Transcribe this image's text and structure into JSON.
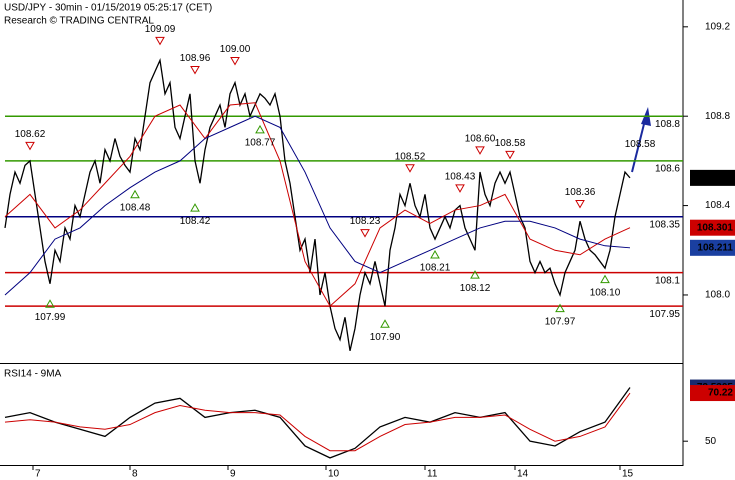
{
  "chart_data": [
    {
      "type": "line",
      "title": "USD/JPY - 30min - 01/15/2019 05:25:17 (CET)",
      "subtitle": "Research © TRADING CENTRAL",
      "xlim": [
        -1,
        135.6
      ],
      "xticks": [
        {
          "value": 5.6,
          "label": "7"
        },
        {
          "value": 25,
          "label": "8"
        },
        {
          "value": 44.6,
          "label": "9"
        },
        {
          "value": 64.2,
          "label": "10"
        },
        {
          "value": 84,
          "label": "11"
        },
        {
          "value": 102,
          "label": "14"
        },
        {
          "value": 123,
          "label": "15"
        }
      ],
      "ylim": [
        107.7,
        109.32
      ],
      "yticks": [
        109.2,
        108.8,
        108.4,
        {
          "value": 108.0,
          "label": "108.0"
        }
      ],
      "series": [
        {
          "color": "#000000",
          "x": [
            0,
            1,
            2,
            3,
            4,
            5,
            6,
            7,
            8,
            9,
            10,
            11,
            12,
            13,
            14,
            15,
            16,
            17,
            18,
            19,
            20,
            21,
            22,
            23,
            24,
            25,
            26,
            27,
            28,
            29,
            30,
            31,
            32,
            33,
            34,
            35,
            36,
            37,
            38,
            39,
            40,
            41,
            42,
            43,
            44,
            45,
            46,
            47,
            48,
            49,
            50,
            51,
            52,
            53,
            54,
            55,
            56,
            57,
            58,
            59,
            60,
            61,
            62,
            63,
            64,
            65,
            66,
            67,
            68,
            69,
            70,
            71,
            72,
            73,
            74,
            75,
            76,
            77,
            78,
            79,
            80,
            81,
            82,
            83,
            84,
            85,
            86,
            87,
            88,
            89,
            90,
            91,
            92,
            93,
            94,
            95,
            96,
            97,
            98,
            99,
            100,
            101,
            102,
            103,
            104,
            105,
            106,
            107,
            108,
            109,
            110,
            111,
            112,
            113,
            114,
            115,
            116,
            117,
            118,
            119,
            120,
            121,
            122,
            123,
            124,
            125
          ],
          "values": [
            108.3,
            108.45,
            108.55,
            108.5,
            108.58,
            108.6,
            108.45,
            108.3,
            108.15,
            108.05,
            108.2,
            108.15,
            108.3,
            108.25,
            108.4,
            108.35,
            108.45,
            108.55,
            108.6,
            108.5,
            108.65,
            108.6,
            108.7,
            108.62,
            108.58,
            108.55,
            108.7,
            108.65,
            108.8,
            108.95,
            109.0,
            109.05,
            108.9,
            108.95,
            108.75,
            108.7,
            108.8,
            108.9,
            108.6,
            108.5,
            108.65,
            108.75,
            108.8,
            108.85,
            108.75,
            108.9,
            108.95,
            108.85,
            108.9,
            108.8,
            108.85,
            108.9,
            108.88,
            108.85,
            108.9,
            108.8,
            108.6,
            108.5,
            108.35,
            108.2,
            108.25,
            108.1,
            108.25,
            108.0,
            108.1,
            107.95,
            107.85,
            107.8,
            107.9,
            107.75,
            107.85,
            108.0,
            108.1,
            108.05,
            108.15,
            108.05,
            107.95,
            108.2,
            108.3,
            108.45,
            108.4,
            108.5,
            108.4,
            108.35,
            108.45,
            108.3,
            108.25,
            108.3,
            108.35,
            108.3,
            108.38,
            108.4,
            108.3,
            108.25,
            108.2,
            108.55,
            108.45,
            108.4,
            108.5,
            108.55,
            108.5,
            108.55,
            108.45,
            108.35,
            108.3,
            108.15,
            108.1,
            108.15,
            108.1,
            108.12,
            108.05,
            108.0,
            108.1,
            108.15,
            108.2,
            108.33,
            108.25,
            108.2,
            108.18,
            108.15,
            108.12,
            108.2,
            108.35,
            108.45,
            108.55,
            108.524
          ]
        },
        {
          "color": "#cc0000",
          "x": [
            0,
            5,
            10,
            15,
            20,
            25,
            30,
            35,
            40,
            45,
            50,
            55,
            60,
            65,
            70,
            75,
            80,
            85,
            90,
            95,
            100,
            105,
            110,
            115,
            120,
            125
          ],
          "values": [
            108.35,
            108.45,
            108.3,
            108.38,
            108.5,
            108.62,
            108.8,
            108.85,
            108.7,
            108.85,
            108.86,
            108.6,
            108.15,
            107.95,
            108.05,
            108.3,
            108.38,
            108.32,
            108.38,
            108.4,
            108.45,
            108.25,
            108.2,
            108.18,
            108.25,
            108.301
          ]
        },
        {
          "color": "#000080",
          "x": [
            0,
            5,
            10,
            15,
            20,
            25,
            30,
            35,
            40,
            45,
            50,
            55,
            60,
            65,
            70,
            75,
            80,
            85,
            90,
            95,
            100,
            105,
            110,
            115,
            120,
            125
          ],
          "values": [
            108.0,
            108.1,
            108.25,
            108.3,
            108.4,
            108.48,
            108.55,
            108.6,
            108.7,
            108.75,
            108.8,
            108.75,
            108.55,
            108.3,
            108.15,
            108.1,
            108.15,
            108.2,
            108.25,
            108.3,
            108.33,
            108.33,
            108.3,
            108.25,
            108.22,
            108.211
          ]
        }
      ],
      "levels": [
        {
          "value": 108.8,
          "color": "#339900"
        },
        {
          "value": 108.6,
          "color": "#339900"
        },
        {
          "value": 108.35,
          "color": "#000080"
        },
        {
          "value": 108.1,
          "color": "#cc0000"
        },
        {
          "value": 107.95,
          "color": "#cc0000"
        }
      ],
      "last_values": [
        {
          "value": 108.524,
          "color": "#000000"
        },
        {
          "value": 108.301,
          "color": "#cc0000"
        },
        {
          "value": 108.211,
          "color": "#1a3fa0"
        }
      ],
      "annotations": [
        {
          "x": 5,
          "value": 108.62,
          "kind": "high"
        },
        {
          "x": 9,
          "value": 107.99,
          "kind": "low"
        },
        {
          "x": 26,
          "value": 108.48,
          "kind": "low"
        },
        {
          "x": 31,
          "value": 109.09,
          "kind": "high"
        },
        {
          "x": 38,
          "value": 108.96,
          "kind": "high"
        },
        {
          "x": 38,
          "value": 108.42,
          "kind": "low"
        },
        {
          "x": 46,
          "value": 109.0,
          "label": "109.00",
          "kind": "high"
        },
        {
          "x": 51,
          "value": 108.77,
          "kind": "low"
        },
        {
          "x": 72,
          "value": 108.23,
          "kind": "high"
        },
        {
          "x": 76,
          "value": 107.9,
          "label": "107.90",
          "kind": "low"
        },
        {
          "x": 81,
          "value": 108.52,
          "kind": "high"
        },
        {
          "x": 86,
          "value": 108.21,
          "kind": "low"
        },
        {
          "x": 91,
          "value": 108.43,
          "kind": "high"
        },
        {
          "x": 95,
          "value": 108.6,
          "label": "108.60",
          "kind": "high"
        },
        {
          "x": 94,
          "value": 108.12,
          "kind": "low"
        },
        {
          "x": 101,
          "value": 108.58,
          "kind": "high"
        },
        {
          "x": 115,
          "value": 108.36,
          "kind": "high"
        },
        {
          "x": 111,
          "value": 107.97,
          "kind": "low"
        },
        {
          "x": 120,
          "value": 108.1,
          "label": "108.10",
          "kind": "low"
        },
        {
          "x": 127,
          "value": 108.58,
          "kind": "text"
        }
      ]
    },
    {
      "type": "line",
      "title": "RSI14 - 9MA",
      "ylim": [
        40,
        82
      ],
      "yticks": [
        50
      ],
      "series": [
        {
          "color": "#000000",
          "x": [
            0,
            5,
            10,
            15,
            20,
            25,
            30,
            35,
            40,
            45,
            50,
            55,
            60,
            65,
            70,
            75,
            80,
            85,
            90,
            95,
            100,
            105,
            110,
            115,
            120,
            125
          ],
          "values": [
            60,
            62,
            58,
            55,
            52,
            60,
            66,
            68,
            60,
            62,
            63,
            60,
            48,
            43,
            47,
            56,
            60,
            58,
            62,
            60,
            62,
            50,
            48,
            54,
            58,
            72.5305
          ]
        },
        {
          "color": "#cc0000",
          "x": [
            0,
            5,
            10,
            15,
            20,
            25,
            30,
            35,
            40,
            45,
            50,
            55,
            60,
            65,
            70,
            75,
            80,
            85,
            90,
            95,
            100,
            105,
            110,
            115,
            120,
            125
          ],
          "values": [
            58,
            59,
            58,
            56,
            55,
            57,
            62,
            65,
            63,
            62,
            62,
            61,
            52,
            46,
            46,
            52,
            57,
            58,
            60,
            60,
            61,
            55,
            50,
            52,
            56,
            70.22
          ]
        }
      ],
      "last_values": [
        {
          "value": 72.5305,
          "color": "#1a2a6e"
        },
        {
          "value": 70.22,
          "color": "#cc0000"
        }
      ]
    }
  ]
}
